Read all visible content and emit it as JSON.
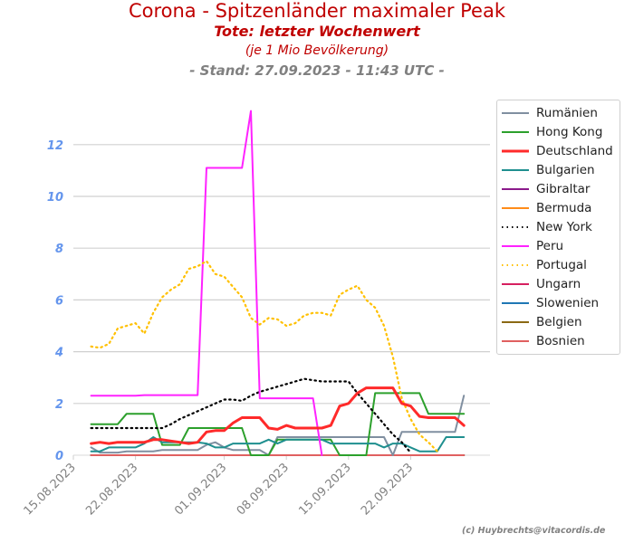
{
  "header": {
    "title": "Corona - Spitzenländer maximaler Peak",
    "subtitle": "Tote: letzter Wochenwert",
    "note": "(je 1 Mio Bevölkerung)",
    "stand": "- Stand: 27.09.2023 - 11:43 UTC -"
  },
  "copyright": "(c) Huybrechts@vitacordis.de",
  "chart_data": {
    "type": "line",
    "title": "Corona - Spitzenländer maximaler Peak",
    "xlabel": "",
    "ylabel": "",
    "x_ticks": [
      "15.08.2023",
      "22.08.2023",
      "01.09.2023",
      "08.09.2023",
      "15.09.2023",
      "22.09.2023"
    ],
    "x_tick_days": [
      0,
      7,
      17,
      24,
      31,
      38
    ],
    "xlim_days": [
      0,
      45
    ],
    "y_ticks": [
      "0",
      "2",
      "4",
      "6",
      "8",
      "10",
      "12"
    ],
    "ylim": [
      0,
      14
    ],
    "grid": "horizontal",
    "legend_position": "right",
    "series": [
      {
        "name": "Rumänien",
        "color": "#808fa0",
        "style": "solid",
        "x_days": [
          2,
          3,
          4,
          5,
          6,
          7,
          8,
          9,
          10,
          11,
          12,
          13,
          14,
          15,
          16,
          17,
          18,
          19,
          20,
          21,
          22,
          23,
          24,
          25,
          26,
          27,
          28,
          29,
          30,
          31,
          32,
          33,
          34,
          35,
          36,
          37,
          38,
          39,
          40,
          41,
          42,
          43,
          44
        ],
        "values": [
          0.3,
          0.1,
          0.1,
          0.1,
          0.15,
          0.15,
          0.15,
          0.15,
          0.2,
          0.2,
          0.2,
          0.2,
          0.2,
          0.4,
          0.5,
          0.3,
          0.2,
          0.2,
          0.2,
          0.2,
          0.0,
          0.7,
          0.7,
          0.7,
          0.7,
          0.7,
          0.7,
          0.7,
          0.7,
          0.7,
          0.7,
          0.7,
          0.7,
          0.7,
          0.0,
          0.9,
          0.9,
          0.9,
          0.9,
          0.9,
          0.9,
          0.9,
          2.3
        ]
      },
      {
        "name": "Hong Kong",
        "color": "#2ca02c",
        "style": "solid",
        "x_days": [
          2,
          3,
          4,
          5,
          6,
          7,
          8,
          9,
          10,
          11,
          12,
          13,
          14,
          15,
          16,
          17,
          18,
          19,
          20,
          21,
          22,
          23,
          24,
          25,
          26,
          27,
          28,
          29,
          30,
          31,
          32,
          33,
          34,
          35,
          36,
          37,
          38,
          39,
          40,
          41,
          42,
          43,
          44
        ],
        "values": [
          1.2,
          1.2,
          1.2,
          1.2,
          1.6,
          1.6,
          1.6,
          1.6,
          0.4,
          0.4,
          0.4,
          1.05,
          1.05,
          1.05,
          1.05,
          1.05,
          1.05,
          1.05,
          0.0,
          0.0,
          0.0,
          0.6,
          0.6,
          0.6,
          0.6,
          0.6,
          0.6,
          0.6,
          0.0,
          0.0,
          0.0,
          0.0,
          2.4,
          2.4,
          2.4,
          2.4,
          2.4,
          2.4,
          1.6,
          1.6,
          1.6,
          1.6,
          1.6
        ]
      },
      {
        "name": "Deutschland",
        "color": "#ff2a2a",
        "style": "solid",
        "x_days": [
          2,
          3,
          4,
          5,
          6,
          7,
          8,
          9,
          10,
          11,
          12,
          13,
          14,
          15,
          16,
          17,
          18,
          19,
          20,
          21,
          22,
          23,
          24,
          25,
          26,
          27,
          28,
          29,
          30,
          31,
          32,
          33,
          34,
          35,
          36,
          37,
          38,
          39,
          40,
          41,
          42,
          43,
          44
        ],
        "values": [
          0.45,
          0.5,
          0.45,
          0.5,
          0.5,
          0.5,
          0.5,
          0.6,
          0.6,
          0.55,
          0.5,
          0.45,
          0.5,
          0.9,
          0.95,
          0.95,
          1.25,
          1.45,
          1.45,
          1.45,
          1.05,
          1.0,
          1.15,
          1.05,
          1.05,
          1.05,
          1.05,
          1.15,
          1.9,
          2.0,
          2.4,
          2.6,
          2.6,
          2.6,
          2.6,
          2.0,
          1.9,
          1.5,
          1.45,
          1.45,
          1.45,
          1.45,
          1.15
        ]
      },
      {
        "name": "Bulgarien",
        "color": "#1f8f8f",
        "style": "solid",
        "x_days": [
          2,
          3,
          4,
          5,
          6,
          7,
          8,
          9,
          10,
          11,
          12,
          13,
          14,
          15,
          16,
          17,
          18,
          19,
          20,
          21,
          22,
          23,
          24,
          25,
          26,
          27,
          28,
          29,
          30,
          31,
          32,
          33,
          34,
          35,
          36,
          37,
          38,
          39,
          40,
          41,
          42,
          43,
          44
        ],
        "values": [
          0.15,
          0.15,
          0.3,
          0.3,
          0.3,
          0.3,
          0.45,
          0.7,
          0.5,
          0.5,
          0.5,
          0.5,
          0.5,
          0.45,
          0.3,
          0.3,
          0.45,
          0.45,
          0.45,
          0.45,
          0.6,
          0.45,
          0.6,
          0.6,
          0.6,
          0.6,
          0.6,
          0.45,
          0.45,
          0.45,
          0.45,
          0.45,
          0.45,
          0.3,
          0.45,
          0.45,
          0.3,
          0.15,
          0.15,
          0.15,
          0.7,
          0.7,
          0.7
        ]
      },
      {
        "name": "Gibraltar",
        "color": "#8b1a8b",
        "style": "solid",
        "x_days": [
          2,
          7,
          12,
          17,
          22,
          27,
          32,
          37,
          42,
          44
        ],
        "values": [
          0,
          0,
          0,
          0,
          0,
          0,
          0,
          0,
          0,
          0
        ]
      },
      {
        "name": "Bermuda",
        "color": "#ff8c1a",
        "style": "solid",
        "x_days": [
          2,
          7,
          12,
          17,
          22,
          27,
          32,
          37,
          42,
          44
        ],
        "values": [
          0,
          0,
          0,
          0,
          0,
          0,
          0,
          0,
          0,
          0
        ]
      },
      {
        "name": "New York",
        "color": "#000000",
        "style": "dotted",
        "x_days": [
          2,
          3,
          4,
          5,
          6,
          7,
          8,
          9,
          10,
          11,
          12,
          13,
          14,
          15,
          16,
          17,
          18,
          19,
          20,
          21,
          22,
          23,
          24,
          25,
          26,
          27,
          28,
          29,
          30,
          31,
          32,
          33,
          34,
          35,
          36,
          37,
          38
        ],
        "values": [
          1.05,
          1.05,
          1.05,
          1.05,
          1.05,
          1.05,
          1.05,
          1.05,
          1.05,
          1.2,
          1.4,
          1.55,
          1.7,
          1.85,
          2.0,
          2.15,
          2.15,
          2.1,
          2.3,
          2.45,
          2.55,
          2.65,
          2.75,
          2.85,
          2.95,
          2.9,
          2.85,
          2.85,
          2.85,
          2.85,
          2.4,
          2.0,
          1.6,
          1.2,
          0.8,
          0.5,
          0.1
        ]
      },
      {
        "name": "Peru",
        "color": "#ff22ff",
        "style": "solid",
        "x_days": [
          2,
          3,
          4,
          5,
          6,
          7,
          8,
          9,
          10,
          11,
          12,
          13,
          14,
          15,
          16,
          17,
          18,
          19,
          20,
          21,
          22,
          23,
          24,
          25,
          26,
          27,
          28
        ],
        "values": [
          2.3,
          2.3,
          2.3,
          2.3,
          2.3,
          2.3,
          2.32,
          2.32,
          2.32,
          2.32,
          2.32,
          2.32,
          2.32,
          11.1,
          11.1,
          11.1,
          11.1,
          11.1,
          13.3,
          2.2,
          2.2,
          2.2,
          2.2,
          2.2,
          2.2,
          2.2,
          0.0
        ]
      },
      {
        "name": "Portugal",
        "color": "#ffc000",
        "style": "dotted",
        "x_days": [
          2,
          3,
          4,
          5,
          6,
          7,
          8,
          9,
          10,
          11,
          12,
          13,
          14,
          15,
          16,
          17,
          18,
          19,
          20,
          21,
          22,
          23,
          24,
          25,
          26,
          27,
          28,
          29,
          30,
          31,
          32,
          33,
          34,
          35,
          36,
          37,
          38,
          39,
          40,
          41
        ],
        "values": [
          4.2,
          4.15,
          4.3,
          4.9,
          5.0,
          5.1,
          4.7,
          5.5,
          6.1,
          6.4,
          6.6,
          7.2,
          7.3,
          7.5,
          7.0,
          6.9,
          6.5,
          6.1,
          5.3,
          5.05,
          5.3,
          5.25,
          5.0,
          5.1,
          5.4,
          5.5,
          5.5,
          5.4,
          6.2,
          6.4,
          6.55,
          6.0,
          5.7,
          5.0,
          3.8,
          2.2,
          1.4,
          0.8,
          0.5,
          0.15
        ]
      },
      {
        "name": "Ungarn",
        "color": "#d62060",
        "style": "solid",
        "x_days": [
          2,
          7,
          12,
          17,
          22,
          27,
          32,
          37,
          42,
          44
        ],
        "values": [
          0,
          0,
          0,
          0,
          0,
          0,
          0,
          0,
          0,
          0
        ]
      },
      {
        "name": "Slowenien",
        "color": "#1f77b4",
        "style": "solid",
        "x_days": [
          2,
          7,
          12,
          17,
          22,
          27,
          32,
          37,
          42,
          44
        ],
        "values": [
          0,
          0,
          0,
          0,
          0,
          0,
          0,
          0,
          0,
          0
        ]
      },
      {
        "name": "Belgien",
        "color": "#8b6914",
        "style": "solid",
        "x_days": [
          2,
          7,
          12,
          17,
          22,
          27,
          32,
          37,
          42,
          44
        ],
        "values": [
          0,
          0,
          0,
          0,
          0,
          0,
          0,
          0,
          0,
          0
        ]
      },
      {
        "name": "Bosnien",
        "color": "#e06060",
        "style": "solid",
        "x_days": [
          2,
          7,
          12,
          17,
          22,
          27,
          32,
          37,
          42,
          44
        ],
        "values": [
          0,
          0,
          0,
          0,
          0,
          0,
          0,
          0,
          0,
          0
        ]
      }
    ]
  }
}
